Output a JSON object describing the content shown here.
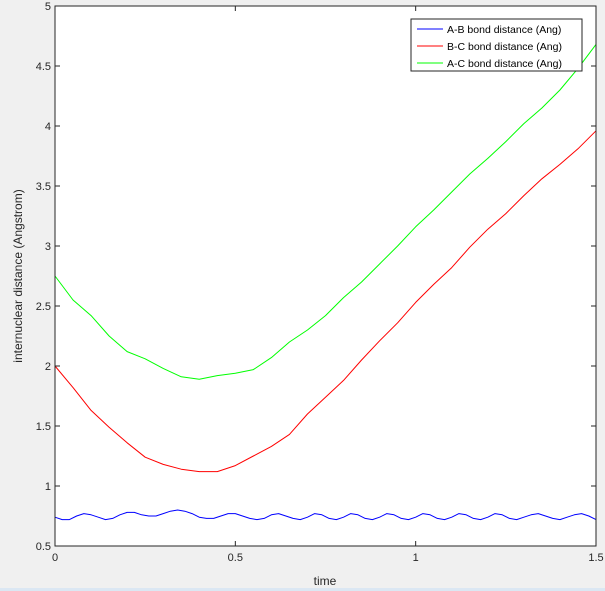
{
  "chart_data": {
    "type": "line",
    "title": "",
    "xlabel": "time",
    "ylabel": "internuclear distance (Angstrom)",
    "xlim": [
      0,
      1.5
    ],
    "ylim": [
      0.5,
      5
    ],
    "xticks": [
      0,
      0.5,
      1,
      1.5
    ],
    "xtick_labels": [
      "0",
      "0.5",
      "1",
      "1.5"
    ],
    "yticks": [
      0.5,
      1,
      1.5,
      2,
      2.5,
      3,
      3.5,
      4,
      4.5,
      5
    ],
    "ytick_labels": [
      "0.5",
      "1",
      "1.5",
      "2",
      "2.5",
      "3",
      "3.5",
      "4",
      "4.5",
      "5"
    ],
    "legend_position": "top-right",
    "series": [
      {
        "name": "A-B bond distance (Ang)",
        "color": "#0000ff",
        "x": [
          0,
          0.02,
          0.04,
          0.06,
          0.08,
          0.1,
          0.12,
          0.14,
          0.16,
          0.18,
          0.2,
          0.22,
          0.24,
          0.26,
          0.28,
          0.3,
          0.32,
          0.34,
          0.36,
          0.38,
          0.4,
          0.42,
          0.44,
          0.46,
          0.48,
          0.5,
          0.52,
          0.54,
          0.56,
          0.58,
          0.6,
          0.62,
          0.64,
          0.66,
          0.68,
          0.7,
          0.72,
          0.74,
          0.76,
          0.78,
          0.8,
          0.82,
          0.84,
          0.86,
          0.88,
          0.9,
          0.92,
          0.94,
          0.96,
          0.98,
          1.0,
          1.02,
          1.04,
          1.06,
          1.08,
          1.1,
          1.12,
          1.14,
          1.16,
          1.18,
          1.2,
          1.22,
          1.24,
          1.26,
          1.28,
          1.3,
          1.32,
          1.34,
          1.36,
          1.38,
          1.4,
          1.42,
          1.44,
          1.46,
          1.48,
          1.5
        ],
        "values": [
          0.74,
          0.72,
          0.72,
          0.75,
          0.77,
          0.76,
          0.74,
          0.72,
          0.73,
          0.76,
          0.78,
          0.78,
          0.76,
          0.75,
          0.75,
          0.77,
          0.79,
          0.8,
          0.79,
          0.77,
          0.74,
          0.73,
          0.73,
          0.75,
          0.77,
          0.77,
          0.75,
          0.73,
          0.72,
          0.73,
          0.76,
          0.77,
          0.75,
          0.73,
          0.72,
          0.74,
          0.77,
          0.76,
          0.73,
          0.72,
          0.74,
          0.77,
          0.76,
          0.73,
          0.72,
          0.74,
          0.77,
          0.76,
          0.73,
          0.72,
          0.74,
          0.77,
          0.76,
          0.73,
          0.72,
          0.74,
          0.77,
          0.76,
          0.73,
          0.72,
          0.74,
          0.77,
          0.76,
          0.73,
          0.72,
          0.74,
          0.76,
          0.77,
          0.75,
          0.73,
          0.72,
          0.74,
          0.76,
          0.77,
          0.75,
          0.72
        ]
      },
      {
        "name": "B-C bond distance (Ang)",
        "color": "#ff0000",
        "x": [
          0,
          0.05,
          0.1,
          0.15,
          0.2,
          0.25,
          0.3,
          0.35,
          0.4,
          0.45,
          0.5,
          0.55,
          0.6,
          0.65,
          0.7,
          0.75,
          0.8,
          0.85,
          0.9,
          0.95,
          1.0,
          1.05,
          1.1,
          1.15,
          1.2,
          1.25,
          1.3,
          1.35,
          1.4,
          1.45,
          1.5
        ],
        "values": [
          2.0,
          1.82,
          1.63,
          1.49,
          1.36,
          1.24,
          1.18,
          1.14,
          1.12,
          1.12,
          1.17,
          1.25,
          1.33,
          1.43,
          1.6,
          1.74,
          1.88,
          2.05,
          2.21,
          2.36,
          2.53,
          2.68,
          2.82,
          2.99,
          3.14,
          3.27,
          3.42,
          3.56,
          3.68,
          3.81,
          3.96
        ]
      },
      {
        "name": "A-C bond distance (Ang)",
        "color": "#00ff00",
        "x": [
          0,
          0.05,
          0.1,
          0.15,
          0.2,
          0.25,
          0.3,
          0.35,
          0.4,
          0.45,
          0.5,
          0.55,
          0.6,
          0.65,
          0.7,
          0.75,
          0.8,
          0.85,
          0.9,
          0.95,
          1.0,
          1.05,
          1.1,
          1.15,
          1.2,
          1.25,
          1.3,
          1.35,
          1.4,
          1.45,
          1.5
        ],
        "values": [
          2.75,
          2.55,
          2.42,
          2.25,
          2.12,
          2.06,
          1.98,
          1.91,
          1.89,
          1.92,
          1.94,
          1.97,
          2.07,
          2.2,
          2.3,
          2.42,
          2.57,
          2.7,
          2.85,
          3.0,
          3.16,
          3.3,
          3.45,
          3.6,
          3.73,
          3.87,
          4.02,
          4.15,
          4.3,
          4.48,
          4.68
        ]
      }
    ]
  }
}
